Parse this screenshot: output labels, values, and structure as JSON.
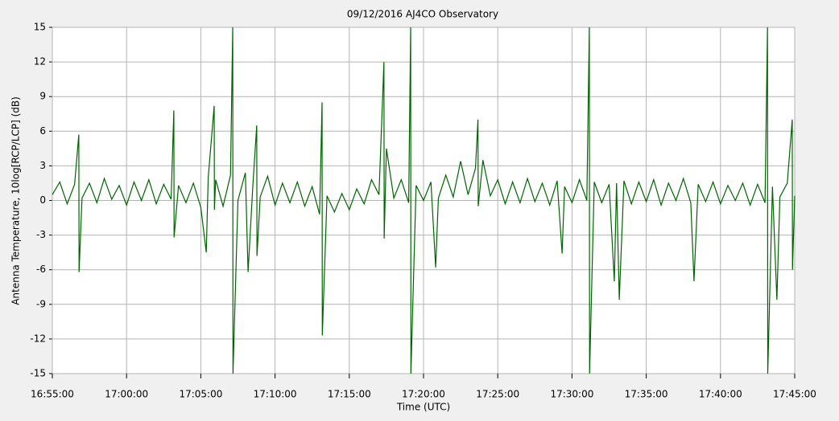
{
  "chart_data": {
    "type": "line",
    "title": "09/12/2016    AJ4CO Observatory",
    "x_label": "Time (UTC)",
    "y_label": "Antenna Temperature, 10log[RCP/LCP] (dB)",
    "xlim": [
      "16:55:00",
      "17:45:00"
    ],
    "xticks": [
      "16:55:00",
      "17:00:00",
      "17:05:00",
      "17:10:00",
      "17:15:00",
      "17:20:00",
      "17:25:00",
      "17:30:00",
      "17:35:00",
      "17:40:00",
      "17:45:00"
    ],
    "ylim": [
      -15,
      15
    ],
    "yticks": [
      15,
      12,
      9,
      6,
      3,
      0,
      -3,
      -6,
      -9,
      -12,
      -15
    ],
    "grid": true,
    "x": [
      "16:55:00",
      "16:55:30",
      "16:56:00",
      "16:56:30",
      "16:56:47",
      "16:56:48",
      "16:57:00",
      "16:57:30",
      "16:58:00",
      "16:58:30",
      "16:59:00",
      "16:59:30",
      "17:00:00",
      "17:00:30",
      "17:01:00",
      "17:01:30",
      "17:02:00",
      "17:02:30",
      "17:03:00",
      "17:03:11",
      "17:03:12",
      "17:03:30",
      "17:04:00",
      "17:04:30",
      "17:05:00",
      "17:05:22",
      "17:05:30",
      "17:05:54",
      "17:05:55",
      "17:06:00",
      "17:06:30",
      "17:07:00",
      "17:07:09",
      "17:07:10",
      "17:07:30",
      "17:08:00",
      "17:08:11",
      "17:08:30",
      "17:08:46",
      "17:08:47",
      "17:09:00",
      "17:09:30",
      "17:10:00",
      "17:10:30",
      "17:11:00",
      "17:11:30",
      "17:12:00",
      "17:12:30",
      "17:13:00",
      "17:13:10",
      "17:13:11",
      "17:13:30",
      "17:14:00",
      "17:14:30",
      "17:15:00",
      "17:15:30",
      "17:16:00",
      "17:16:30",
      "17:17:00",
      "17:17:20",
      "17:17:21",
      "17:17:30",
      "17:18:00",
      "17:18:30",
      "17:19:00",
      "17:19:08",
      "17:19:09",
      "17:19:30",
      "17:20:00",
      "17:20:30",
      "17:20:49",
      "17:21:00",
      "17:21:30",
      "17:22:00",
      "17:22:30",
      "17:23:00",
      "17:23:30",
      "17:23:40",
      "17:23:41",
      "17:24:00",
      "17:24:30",
      "17:25:00",
      "17:25:30",
      "17:26:00",
      "17:26:30",
      "17:27:00",
      "17:27:30",
      "17:28:00",
      "17:28:30",
      "17:29:00",
      "17:29:20",
      "17:29:30",
      "17:30:00",
      "17:30:30",
      "17:31:00",
      "17:31:10",
      "17:31:11",
      "17:31:30",
      "17:32:00",
      "17:32:30",
      "17:32:51",
      "17:33:00",
      "17:33:11",
      "17:33:30",
      "17:34:00",
      "17:34:30",
      "17:35:00",
      "17:35:30",
      "17:36:00",
      "17:36:30",
      "17:37:00",
      "17:37:30",
      "17:38:00",
      "17:38:13",
      "17:38:30",
      "17:39:00",
      "17:39:30",
      "17:40:00",
      "17:40:30",
      "17:41:00",
      "17:41:30",
      "17:42:00",
      "17:42:30",
      "17:43:00",
      "17:43:10",
      "17:43:11",
      "17:43:30",
      "17:43:48",
      "17:44:00",
      "17:44:30",
      "17:44:50",
      "17:44:51",
      "17:45:00"
    ],
    "series": [
      {
        "color": "#006400",
        "values": [
          0.5,
          1.6,
          -0.3,
          1.4,
          5.7,
          -6.2,
          0.2,
          1.5,
          -0.2,
          1.9,
          0.1,
          1.3,
          -0.4,
          1.6,
          0.0,
          1.8,
          -0.3,
          1.4,
          0.1,
          7.8,
          -3.2,
          1.3,
          -0.2,
          1.5,
          -0.6,
          -4.5,
          2.0,
          8.2,
          -0.8,
          1.8,
          -0.5,
          2.2,
          15,
          -15,
          0.0,
          2.4,
          -6.2,
          1.2,
          6.5,
          -4.8,
          0.3,
          2.1,
          -0.4,
          1.5,
          -0.2,
          1.6,
          -0.5,
          1.2,
          -1.2,
          8.5,
          -11.7,
          0.4,
          -1.0,
          0.6,
          -0.8,
          1.0,
          -0.3,
          1.8,
          0.5,
          12,
          -3.3,
          4.5,
          0.2,
          1.8,
          -0.2,
          15,
          -15,
          1.3,
          0.0,
          1.6,
          -5.8,
          0.2,
          2.2,
          0.3,
          3.4,
          0.5,
          2.8,
          7,
          -0.5,
          3.5,
          0.4,
          1.8,
          -0.3,
          1.6,
          -0.2,
          1.9,
          -0.1,
          1.5,
          -0.4,
          1.7,
          -4.6,
          1.2,
          -0.2,
          1.8,
          0.0,
          15,
          -15,
          1.6,
          -0.2,
          1.4,
          -7,
          1.5,
          -8.6,
          1.7,
          -0.3,
          1.6,
          -0.1,
          1.8,
          -0.4,
          1.5,
          0.0,
          1.9,
          -0.2,
          -7,
          1.4,
          -0.1,
          1.6,
          -0.3,
          1.3,
          0.0,
          1.5,
          -0.4,
          1.4,
          -0.2,
          15,
          -15,
          1.2,
          -8.6,
          0.3,
          1.5,
          7,
          -6,
          0.4
        ]
      }
    ]
  }
}
